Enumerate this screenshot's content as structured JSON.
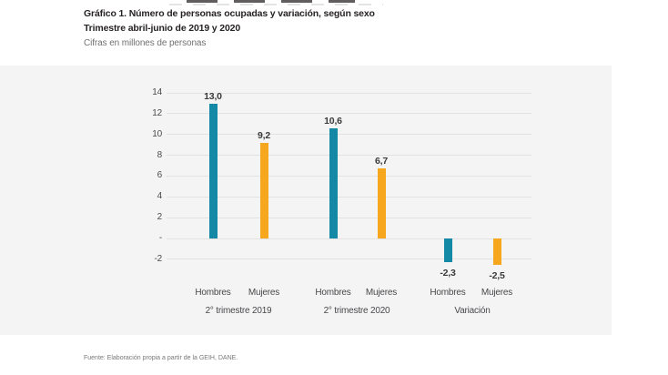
{
  "header": {
    "title_line1": "Gráfico 1. Número de personas ocupadas y variación, según sexo",
    "title_line2": "Trimestre abril-junio de 2019 y 2020",
    "units": "Cifras en millones de personas"
  },
  "footer": {
    "source": "Fuente: Elaboración propia a partir de la GEIH, DANE."
  },
  "colors": {
    "hombres": "#1489a6",
    "mujeres": "#f6a71d",
    "panel_bg": "#f4f4f5",
    "gridline": "#e2e2e3",
    "title_text": "#272324",
    "muted_text": "#6f7072"
  },
  "chart_data": {
    "type": "bar",
    "title": "Gráfico 1. Número de personas ocupadas y variación, según sexo",
    "subtitle": "Trimestre abril-junio de 2019 y 2020",
    "units_label": "Cifras en millones de personas",
    "categories": [
      "2° trimestre 2019",
      "2° trimestre 2020",
      "Variación"
    ],
    "series": [
      {
        "name": "Hombres",
        "color": "#1489a6",
        "values": [
          13.0,
          10.6,
          -2.3
        ],
        "labels": [
          "13,0",
          "10,6",
          "-2,3"
        ]
      },
      {
        "name": "Mujeres",
        "color": "#f6a71d",
        "values": [
          9.2,
          6.7,
          -2.5
        ],
        "labels": [
          "9,2",
          "6,7",
          "-2,5"
        ]
      }
    ],
    "y_axis": {
      "tick_values": [
        14,
        12,
        10,
        8,
        6,
        4,
        2,
        0,
        -2
      ],
      "tick_labels": [
        "14",
        "12",
        "10",
        "8",
        "6",
        "4",
        "2",
        "-",
        "-2"
      ],
      "range": [
        -2,
        14
      ],
      "step": 2
    },
    "grid": true,
    "legend": "none"
  }
}
